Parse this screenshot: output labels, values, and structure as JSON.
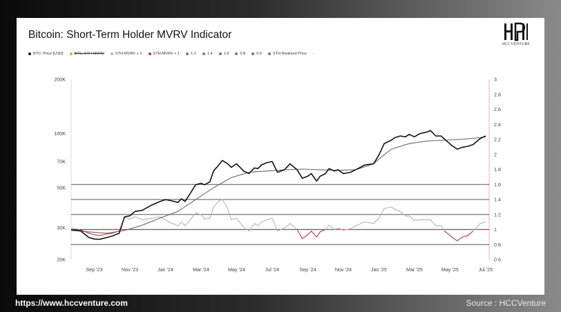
{
  "colors": {
    "price": "#111111",
    "realized": "#6b6b6b",
    "mvrv_above": "#b5b5b5",
    "mvrv_below": "#c0304b",
    "line_one": "#c0304b",
    "levels": "#555555"
  },
  "footer": {
    "website": "https://www.hccventure.com",
    "source": "Source : HCCVenture"
  },
  "logo": {
    "text": "HCCVENTURE"
  },
  "chart_data": {
    "type": "line",
    "title": "Bitcoin: Short-Term Holder MVRV Indicator",
    "legend": [
      {
        "label": "BTC: Price [USD]",
        "color": "#111111",
        "struck": false
      },
      {
        "label": "BTC: STH-MVRV",
        "color": "#f29a2e",
        "struck": true
      },
      {
        "label": "STH-MVRV > 1",
        "color": "#b5b5b5",
        "struck": false
      },
      {
        "label": "STH-MVRV < 1",
        "color": "#c0304b",
        "struck": false
      },
      {
        "label": "1.2",
        "color": "#777777",
        "struck": false
      },
      {
        "label": "1.4",
        "color": "#777777",
        "struck": false
      },
      {
        "label": "1.6",
        "color": "#777777",
        "struck": false
      },
      {
        "label": "0.8",
        "color": "#777777",
        "struck": false
      },
      {
        "label": "0.6",
        "color": "#777777",
        "struck": false
      },
      {
        "label": "STH Realized Price",
        "color": "#777777",
        "struck": false
      },
      {
        "label": "-",
        "color": "",
        "struck": false
      }
    ],
    "x_ticks": [
      "Sep '23",
      "Nov '23",
      "Jan '24",
      "Mar '24",
      "May '24",
      "Jul '24",
      "Sep '24",
      "Nov '24",
      "Jan '25",
      "Mar '25",
      "May '25",
      "Jul '25"
    ],
    "y_left": {
      "scale": "log",
      "range": [
        20000,
        200000
      ],
      "ticks": [
        {
          "v": 20000,
          "label": "20K"
        },
        {
          "v": 30000,
          "label": "30K"
        },
        {
          "v": 50000,
          "label": "50K"
        },
        {
          "v": 70000,
          "label": "70K"
        },
        {
          "v": 100000,
          "label": "100K"
        },
        {
          "v": 200000,
          "label": "200K"
        }
      ]
    },
    "y_right": {
      "scale": "linear",
      "range": [
        0.6,
        3
      ],
      "ticks": [
        "0.6",
        "0.8",
        "1",
        "1.2",
        "1.4",
        "1.6",
        "1.8",
        "2",
        "2.2",
        "2.4",
        "2.6",
        "2.8",
        "3"
      ]
    },
    "levels": [
      0.8,
      1.0,
      1.2,
      1.4,
      1.6
    ],
    "x_range_months": [
      0,
      23.5
    ],
    "series": [
      {
        "name": "BTC: Price [USD]",
        "axis": "left",
        "x": [
          0,
          0.5,
          1,
          1.3,
          1.6,
          2,
          2.3,
          2.7,
          3,
          3.3,
          3.6,
          4,
          4.5,
          5,
          5.3,
          5.6,
          6,
          6.2,
          6.4,
          6.6,
          7,
          7.3,
          7.5,
          7.8,
          8,
          8.3,
          8.5,
          8.8,
          9,
          9.3,
          9.7,
          10,
          10.3,
          10.5,
          10.7,
          11,
          11.3,
          11.6,
          12,
          12.3,
          12.7,
          13,
          13.3,
          13.5,
          13.8,
          14,
          14.3,
          14.5,
          14.8,
          15,
          15.3,
          15.7,
          16,
          16.5,
          17,
          17.3,
          17.6,
          18,
          18.2,
          18.5,
          18.8,
          19,
          19.3,
          19.6,
          20,
          20.2,
          20.5,
          20.8,
          21,
          21.4,
          21.7,
          22,
          22.3,
          22.6,
          23,
          23.3
        ],
        "y": [
          29300,
          29000,
          26500,
          26000,
          25900,
          26500,
          27000,
          28000,
          34500,
          35000,
          37000,
          37500,
          40000,
          42000,
          43000,
          42500,
          41500,
          43500,
          42000,
          45000,
          52000,
          53000,
          52000,
          54000,
          62000,
          67000,
          71000,
          68000,
          65000,
          68000,
          62000,
          60000,
          64500,
          64000,
          67000,
          69000,
          70000,
          61000,
          63000,
          68000,
          63000,
          56500,
          58000,
          60000,
          54500,
          58000,
          60000,
          64000,
          62000,
          63000,
          60000,
          61000,
          63000,
          67000,
          68000,
          76000,
          88000,
          92000,
          95000,
          97000,
          96000,
          99000,
          96000,
          100000,
          102000,
          104000,
          97000,
          97000,
          93000,
          86000,
          82000,
          84000,
          85000,
          87000,
          94000,
          97000
        ]
      },
      {
        "name": "STH Realized Price",
        "axis": "left",
        "x": [
          0,
          1,
          2,
          3,
          4,
          5,
          6,
          7,
          8,
          9,
          10,
          11,
          12,
          13,
          14,
          15,
          16,
          17,
          17.5,
          18,
          19,
          20,
          21,
          22,
          23,
          23.3
        ],
        "y": [
          29000,
          28500,
          28000,
          29000,
          31000,
          34000,
          37000,
          43000,
          50000,
          57000,
          61000,
          62000,
          63000,
          63500,
          63000,
          62500,
          63000,
          68000,
          75000,
          82000,
          88000,
          91000,
          92000,
          93000,
          95000,
          96000
        ]
      },
      {
        "name": "STH-MVRV",
        "axis": "right",
        "x": [
          0,
          0.5,
          1,
          1.3,
          1.6,
          2,
          2.3,
          2.7,
          3,
          3.3,
          3.6,
          4,
          4.5,
          5,
          5.3,
          5.6,
          6,
          6.2,
          6.4,
          6.6,
          7,
          7.3,
          7.5,
          7.8,
          8,
          8.3,
          8.5,
          8.8,
          9,
          9.3,
          9.7,
          10,
          10.3,
          10.5,
          10.7,
          11,
          11.3,
          11.6,
          12,
          12.3,
          12.7,
          13,
          13.3,
          13.5,
          13.8,
          14,
          14.3,
          14.5,
          14.8,
          15,
          15.3,
          15.7,
          16,
          16.5,
          17,
          17.3,
          17.6,
          18,
          18.2,
          18.5,
          18.8,
          19,
          19.3,
          19.6,
          20,
          20.2,
          20.5,
          20.8,
          21,
          21.4,
          21.7,
          22,
          22.3,
          22.6,
          23,
          23.3
        ],
        "y": [
          1.02,
          1.0,
          0.95,
          0.93,
          0.92,
          0.94,
          0.95,
          0.98,
          1.16,
          1.14,
          1.17,
          1.13,
          1.15,
          1.17,
          1.13,
          1.09,
          1.05,
          1.1,
          1.05,
          1.1,
          1.22,
          1.2,
          1.14,
          1.15,
          1.3,
          1.38,
          1.4,
          1.28,
          1.13,
          1.15,
          1.03,
          0.98,
          1.08,
          1.05,
          1.1,
          1.13,
          1.15,
          0.98,
          1.02,
          1.08,
          1.0,
          0.88,
          0.93,
          0.98,
          0.9,
          0.97,
          1.0,
          1.06,
          1.0,
          1.02,
          0.99,
          1.01,
          1.05,
          1.1,
          1.08,
          1.15,
          1.28,
          1.3,
          1.27,
          1.24,
          1.18,
          1.18,
          1.12,
          1.13,
          1.13,
          1.13,
          1.05,
          1.05,
          0.98,
          0.9,
          0.85,
          0.9,
          0.92,
          0.98,
          1.08,
          1.1
        ]
      }
    ]
  }
}
